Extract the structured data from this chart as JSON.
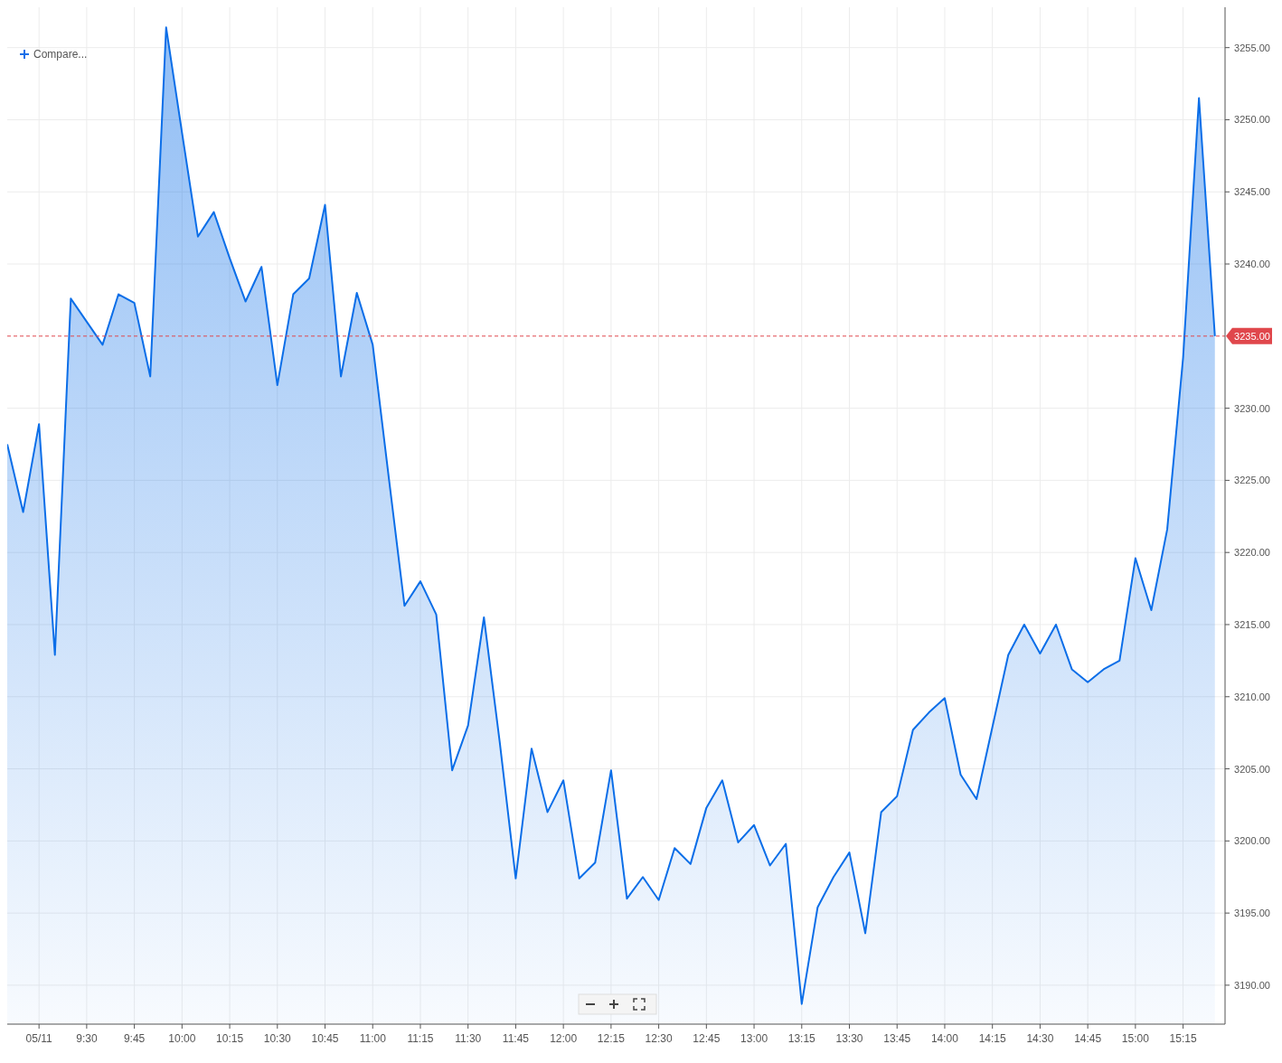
{
  "chart_data": {
    "type": "area",
    "x": [
      9.0833,
      9.1667,
      9.25,
      9.3333,
      9.4167,
      9.5,
      9.5833,
      9.6667,
      9.75,
      9.8333,
      9.9167,
      10,
      10.0833,
      10.1667,
      10.25,
      10.3333,
      10.4167,
      10.5,
      10.5833,
      10.6667,
      10.75,
      10.8333,
      10.9167,
      11,
      11.0833,
      11.1667,
      11.25,
      11.3333,
      11.4167,
      11.5,
      11.5833,
      11.6667,
      11.75,
      11.8333,
      11.9167,
      12,
      12.0833,
      12.1667,
      12.25,
      12.3333,
      12.4167,
      12.5,
      12.5833,
      12.6667,
      12.75,
      12.8333,
      12.9167,
      13,
      13.0833,
      13.1667,
      13.25,
      13.3333,
      13.4167,
      13.5,
      13.5833,
      13.6667,
      13.75,
      13.8333,
      13.9167,
      14,
      14.0833,
      14.1667,
      14.25,
      14.3333,
      14.4167,
      14.5,
      14.5833,
      14.6667,
      14.75,
      14.8333,
      14.9167,
      15,
      15.0833,
      15.1667,
      15.25,
      15.3333,
      15.4167
    ],
    "series": [
      {
        "color": "#0b6ee8",
        "values": [
          3227.5,
          3222.8,
          3228.9,
          3212.9,
          3237.6,
          3236.0,
          3234.4,
          3237.9,
          3237.3,
          3232.2,
          3256.4,
          3249.1,
          3241.9,
          3243.6,
          3240.4,
          3237.4,
          3239.8,
          3231.6,
          3237.9,
          3239.0,
          3244.1,
          3232.2,
          3238.0,
          3234.4,
          3225.3,
          3216.3,
          3218.0,
          3215.7,
          3204.9,
          3208.0,
          3215.5,
          3206.8,
          3197.4,
          3206.4,
          3202.0,
          3204.2,
          3197.4,
          3198.5,
          3204.9,
          3196.0,
          3197.5,
          3195.9,
          3199.5,
          3198.4,
          3202.3,
          3204.2,
          3199.9,
          3201.1,
          3198.3,
          3199.8,
          3188.7,
          3195.4,
          3197.5,
          3199.2,
          3193.6,
          3202.0,
          3203.1,
          3207.7,
          3208.9,
          3209.9,
          3204.6,
          3202.9,
          3207.9,
          3212.9,
          3215.0,
          3213.0,
          3215.0,
          3211.9,
          3211.0,
          3211.9,
          3212.5,
          3219.6,
          3216.0,
          3221.6,
          3233.5,
          3251.5,
          3235.0
        ]
      }
    ],
    "xlim": [
      9.0833,
      15.47
    ],
    "xticks": [
      {
        "value": 9.25,
        "label": "05/11"
      },
      {
        "value": 9.5,
        "label": "9:30"
      },
      {
        "value": 9.75,
        "label": "9:45"
      },
      {
        "value": 10,
        "label": "10:00"
      },
      {
        "value": 10.25,
        "label": "10:15"
      },
      {
        "value": 10.5,
        "label": "10:30"
      },
      {
        "value": 10.75,
        "label": "10:45"
      },
      {
        "value": 11,
        "label": "11:00"
      },
      {
        "value": 11.25,
        "label": "11:15"
      },
      {
        "value": 11.5,
        "label": "11:30"
      },
      {
        "value": 11.75,
        "label": "11:45"
      },
      {
        "value": 12,
        "label": "12:00"
      },
      {
        "value": 12.25,
        "label": "12:15"
      },
      {
        "value": 12.5,
        "label": "12:30"
      },
      {
        "value": 12.75,
        "label": "12:45"
      },
      {
        "value": 13,
        "label": "13:00"
      },
      {
        "value": 13.25,
        "label": "13:15"
      },
      {
        "value": 13.5,
        "label": "13:30"
      },
      {
        "value": 13.75,
        "label": "13:45"
      },
      {
        "value": 14,
        "label": "14:00"
      },
      {
        "value": 14.25,
        "label": "14:15"
      },
      {
        "value": 14.5,
        "label": "14:30"
      },
      {
        "value": 14.75,
        "label": "14:45"
      },
      {
        "value": 15,
        "label": "15:00"
      },
      {
        "value": 15.25,
        "label": "15:15"
      }
    ],
    "ylim": [
      3187.3,
      3257.8
    ],
    "yticks": [
      {
        "value": 3190,
        "label": "3190.00"
      },
      {
        "value": 3195,
        "label": "3195.00"
      },
      {
        "value": 3200,
        "label": "3200.00"
      },
      {
        "value": 3205,
        "label": "3205.00"
      },
      {
        "value": 3210,
        "label": "3210.00"
      },
      {
        "value": 3215,
        "label": "3215.00"
      },
      {
        "value": 3220,
        "label": "3220.00"
      },
      {
        "value": 3225,
        "label": "3225.00"
      },
      {
        "value": 3230,
        "label": "3230.00"
      },
      {
        "value": 3240,
        "label": "3240.00"
      },
      {
        "value": 3245,
        "label": "3245.00"
      },
      {
        "value": 3250,
        "label": "3250.00"
      },
      {
        "value": 3255,
        "label": "3255.00"
      }
    ],
    "ref_lines": [
      {
        "axis": "y",
        "value": 3235,
        "label": "3235.00",
        "color": "#e0474c",
        "line_style": "dashed"
      }
    ],
    "annotations": [
      "Compare..."
    ],
    "grid": true
  }
}
